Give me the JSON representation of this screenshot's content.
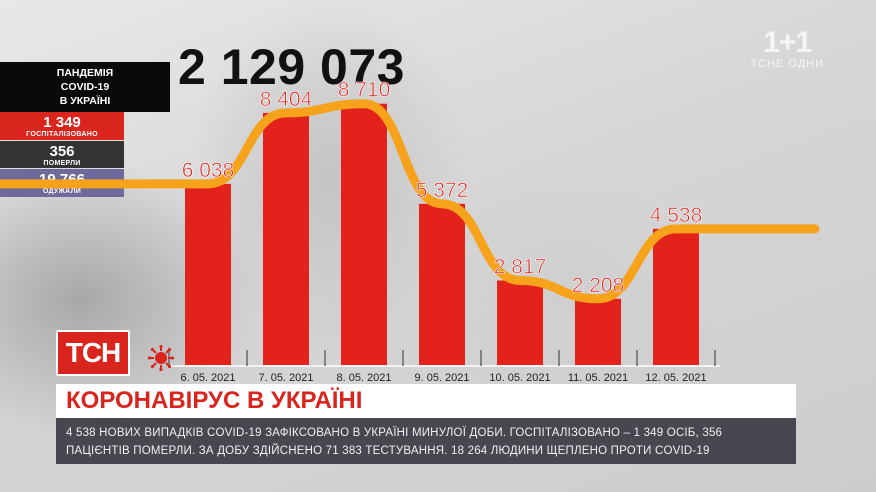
{
  "brand": {
    "channel_logo": "1+1",
    "channel_sub": "ТСНЕ ОДНИ",
    "show_logo": "ТСН"
  },
  "total_cases": "2 129 073",
  "stats": {
    "title": "ПАНДЕМІЯ\nCOVID-19\nВ УКРАЇНІ",
    "hospitalized": {
      "value": "1 349",
      "label": "ГОСПІТАЛІЗОВАНО"
    },
    "died": {
      "value": "356",
      "label": "ПОМЕРЛИ"
    },
    "recovered": {
      "value": "19 766",
      "label": "ОДУЖАЛИ"
    }
  },
  "headline": "КОРОНАВІРУС В УКРАЇНІ",
  "ticker": "4 538 НОВИХ ВИПАДКІВ COVID-19 ЗАФІКСОВАНО В УКРАЇНІ МИНУЛОЇ ДОБИ. ГОСПІТАЛІЗОВАНО – 1 349 ОСІБ, 356 ПАЦІЄНТІВ ПОМЕРЛИ. ЗА ДОБУ ЗДІЙСНЕНО 71 383 ТЕСТУВАННЯ. 18 264 ЛЮДИНИ ЩЕПЛЕНО ПРОТИ COVID-19",
  "colors": {
    "bar": "#e3231b",
    "line": "#f7a21b",
    "label": "#d9251d",
    "accent_red": "#d9251d"
  },
  "chart_data": {
    "type": "bar",
    "categories": [
      "6. 05. 2021",
      "7. 05. 2021",
      "8. 05. 2021",
      "9. 05. 2021",
      "10. 05. 2021",
      "11. 05. 2021",
      "12. 05. 2021"
    ],
    "values": [
      6038,
      8404,
      8710,
      5372,
      2817,
      2208,
      4538
    ],
    "value_labels": [
      "6 038",
      "8 404",
      "8 710",
      "5 372",
      "2 817",
      "2 208",
      "4 538"
    ],
    "title": "",
    "xlabel": "",
    "ylabel": "",
    "ylim": [
      0,
      9500
    ],
    "grid": false,
    "trend_line": true
  }
}
